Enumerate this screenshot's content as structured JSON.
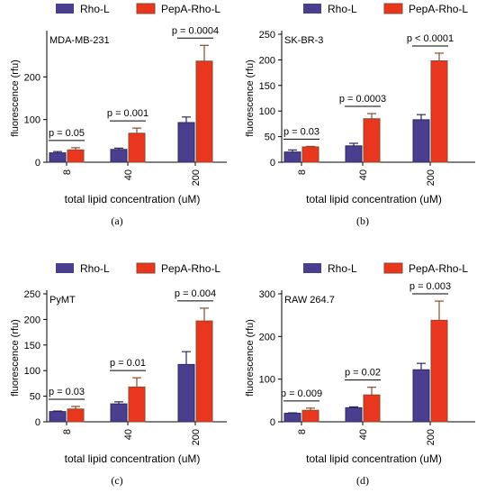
{
  "legend": {
    "series": [
      {
        "name": "Rho-L",
        "color": "#4a3f8e"
      },
      {
        "name": "PepA-Rho-L",
        "color": "#e8361f"
      }
    ]
  },
  "outline_color": "#8a4a2c",
  "chart_data": [
    {
      "type": "bar",
      "caption": "(a)",
      "panel_label": "MDA-MB-231",
      "title": "",
      "xlabel": "total lipid concentration (uM)",
      "ylabel": "fluorescence (rfu)",
      "categories": [
        "8",
        "40",
        "200"
      ],
      "ylim": [
        0,
        300
      ],
      "yticks": [
        0,
        100,
        200
      ],
      "grid": false,
      "legend_position": "top",
      "series": [
        {
          "name": "Rho-L",
          "values": [
            22,
            30,
            93
          ],
          "errors": [
            3,
            3,
            13
          ]
        },
        {
          "name": "PepA-Rho-L",
          "values": [
            29,
            68,
            237
          ],
          "errors": [
            5,
            12,
            37
          ]
        }
      ],
      "annotations": [
        "p = 0.05",
        "p = 0.001",
        "p = 0.0004"
      ]
    },
    {
      "type": "bar",
      "caption": "(b)",
      "panel_label": "SK-BR-3",
      "title": "",
      "xlabel": "total lipid concentration (uM)",
      "ylabel": "fluorescence (rfu)",
      "categories": [
        "8",
        "40",
        "200"
      ],
      "ylim": [
        0,
        250
      ],
      "yticks": [
        0,
        50,
        100,
        150,
        200,
        250
      ],
      "grid": false,
      "legend_position": "top",
      "series": [
        {
          "name": "Rho-L",
          "values": [
            20,
            32,
            83
          ],
          "errors": [
            4,
            5,
            10
          ]
        },
        {
          "name": "PepA-Rho-L",
          "values": [
            30,
            85,
            198
          ],
          "errors": [
            1,
            10,
            15
          ]
        }
      ],
      "annotations": [
        "p = 0.03",
        "p = 0.0003",
        "p < 0.0001"
      ]
    },
    {
      "type": "bar",
      "caption": "(c)",
      "panel_label": "PyMT",
      "title": "",
      "xlabel": "total lipid concentration (uM)",
      "ylabel": "fluorescence (rfu)",
      "categories": [
        "8",
        "40",
        "200"
      ],
      "ylim": [
        0,
        250
      ],
      "yticks": [
        0,
        50,
        100,
        150,
        200,
        250
      ],
      "grid": false,
      "legend_position": "top",
      "series": [
        {
          "name": "Rho-L",
          "values": [
            20,
            35,
            112
          ],
          "errors": [
            1,
            4,
            25
          ]
        },
        {
          "name": "PepA-Rho-L",
          "values": [
            25,
            68,
            197
          ],
          "errors": [
            5,
            18,
            25
          ]
        }
      ],
      "annotations": [
        "p = 0.03",
        "p = 0.01",
        "p = 0.004"
      ]
    },
    {
      "type": "bar",
      "caption": "(d)",
      "panel_label": "RAW 264.7",
      "title": "",
      "xlabel": "total lipid concentration (uM)",
      "ylabel": "fluorescence (rfu)",
      "categories": [
        "8",
        "40",
        "200"
      ],
      "ylim": [
        0,
        300
      ],
      "yticks": [
        0,
        100,
        200,
        300
      ],
      "grid": false,
      "legend_position": "top",
      "series": [
        {
          "name": "Rho-L",
          "values": [
            20,
            33,
            122
          ],
          "errors": [
            1,
            2,
            15
          ]
        },
        {
          "name": "PepA-Rho-L",
          "values": [
            27,
            63,
            238
          ],
          "errors": [
            5,
            18,
            45
          ]
        }
      ],
      "annotations": [
        "p = 0.009",
        "p = 0.02",
        "p = 0.003"
      ]
    }
  ]
}
